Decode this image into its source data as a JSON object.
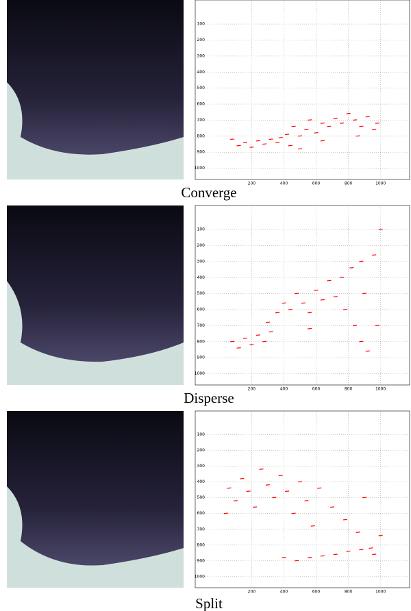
{
  "chart_data": [
    {
      "type": "scatter",
      "title": "Converge",
      "color": "#ff0000",
      "grid": true,
      "xlim": [
        -150,
        1180
      ],
      "ylim": [
        1070,
        -50
      ],
      "xticks": [
        200,
        400,
        600,
        800,
        1000
      ],
      "yticks": [
        100,
        200,
        300,
        400,
        500,
        600,
        700,
        800,
        900,
        1000
      ],
      "x": [
        80,
        120,
        160,
        200,
        240,
        280,
        320,
        360,
        380,
        420,
        440,
        460,
        500,
        540,
        560,
        600,
        640,
        680,
        720,
        760,
        800,
        840,
        880,
        920,
        960,
        980,
        500,
        640,
        860
      ],
      "y": [
        820,
        860,
        840,
        870,
        830,
        850,
        820,
        840,
        810,
        790,
        860,
        740,
        800,
        760,
        700,
        780,
        720,
        740,
        690,
        720,
        660,
        700,
        740,
        680,
        760,
        720,
        880,
        830,
        800
      ]
    },
    {
      "type": "scatter",
      "title": "Disperse",
      "color": "#ff0000",
      "grid": true,
      "xlim": [
        -150,
        1180
      ],
      "ylim": [
        1070,
        -50
      ],
      "xticks": [
        200,
        400,
        600,
        800,
        1000
      ],
      "yticks": [
        100,
        200,
        300,
        400,
        500,
        600,
        700,
        800,
        900,
        1000
      ],
      "x": [
        80,
        120,
        160,
        200,
        240,
        280,
        320,
        300,
        360,
        400,
        440,
        480,
        520,
        560,
        600,
        640,
        680,
        720,
        760,
        780,
        820,
        840,
        880,
        900,
        920,
        960,
        980,
        1000,
        880,
        560
      ],
      "y": [
        800,
        840,
        780,
        820,
        760,
        800,
        740,
        680,
        620,
        560,
        600,
        500,
        560,
        620,
        480,
        540,
        420,
        520,
        400,
        600,
        340,
        700,
        800,
        500,
        860,
        260,
        700,
        100,
        300,
        720
      ]
    },
    {
      "type": "scatter",
      "title": "Split",
      "color": "#ff0000",
      "grid": true,
      "xlim": [
        -150,
        1180
      ],
      "ylim": [
        1070,
        -50
      ],
      "xticks": [
        200,
        400,
        600,
        800,
        1000
      ],
      "yticks": [
        100,
        200,
        300,
        400,
        500,
        600,
        700,
        800,
        900,
        1000
      ],
      "x": [
        40,
        60,
        100,
        140,
        180,
        220,
        260,
        300,
        340,
        380,
        420,
        460,
        500,
        540,
        580,
        620,
        700,
        780,
        860,
        900,
        1000,
        400,
        480,
        560,
        640,
        720,
        800,
        880,
        940,
        960
      ],
      "y": [
        600,
        440,
        520,
        380,
        460,
        560,
        320,
        420,
        500,
        360,
        460,
        600,
        400,
        520,
        680,
        440,
        560,
        640,
        720,
        500,
        740,
        880,
        900,
        880,
        870,
        860,
        840,
        830,
        820,
        860
      ]
    }
  ]
}
